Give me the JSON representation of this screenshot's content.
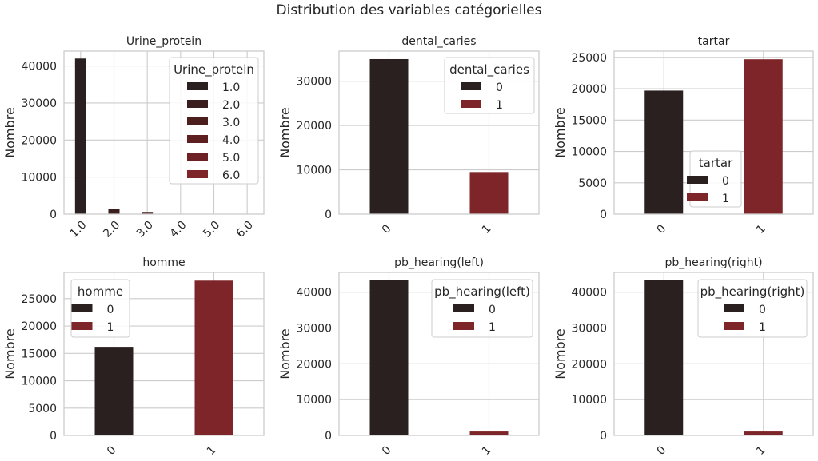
{
  "suptitle": "Distribution des variables catégorielles",
  "colors": {
    "palette": [
      "#2b2020",
      "#3a1d1d",
      "#4c1f1f",
      "#5e1f21",
      "#6e2125",
      "#7d2528"
    ],
    "two": [
      "#2b2020",
      "#7d2528"
    ],
    "grid": "#cccccc",
    "spine": "#cccccc"
  },
  "chart_data": [
    {
      "type": "bar",
      "title": "Urine_protein",
      "ylabel": "Nombre",
      "categories": [
        "1.0",
        "2.0",
        "3.0",
        "4.0",
        "5.0",
        "6.0"
      ],
      "values": [
        42000,
        1500,
        600,
        100,
        50,
        10
      ],
      "ylim": [
        0,
        44000
      ],
      "yticks": [
        0,
        10000,
        20000,
        30000,
        40000
      ],
      "legend": {
        "title": "Urine_protein",
        "labels": [
          "1.0",
          "2.0",
          "3.0",
          "4.0",
          "5.0",
          "6.0"
        ],
        "position": "upper right"
      }
    },
    {
      "type": "bar",
      "title": "dental_caries",
      "ylabel": "Nombre",
      "categories": [
        "0",
        "1"
      ],
      "values": [
        35000,
        9500
      ],
      "ylim": [
        0,
        36800
      ],
      "yticks": [
        0,
        10000,
        20000,
        30000
      ],
      "legend": {
        "title": "dental_caries",
        "labels": [
          "0",
          "1"
        ],
        "position": "upper right"
      }
    },
    {
      "type": "bar",
      "title": "tartar",
      "ylabel": "Nombre",
      "categories": [
        "0",
        "1"
      ],
      "values": [
        19700,
        24700
      ],
      "ylim": [
        0,
        26000
      ],
      "yticks": [
        0,
        5000,
        10000,
        15000,
        20000,
        25000
      ],
      "legend": {
        "title": "tartar",
        "labels": [
          "0",
          "1"
        ],
        "position": "lower center"
      }
    },
    {
      "type": "bar",
      "title": "homme",
      "ylabel": "Nombre",
      "categories": [
        "0",
        "1"
      ],
      "values": [
        16200,
        28300
      ],
      "ylim": [
        0,
        29800
      ],
      "yticks": [
        0,
        5000,
        10000,
        15000,
        20000,
        25000
      ],
      "legend": {
        "title": "homme",
        "labels": [
          "0",
          "1"
        ],
        "position": "upper left"
      }
    },
    {
      "type": "bar",
      "title": "pb_hearing(left)",
      "ylabel": "Nombre",
      "categories": [
        "0",
        "1"
      ],
      "values": [
        43300,
        1100
      ],
      "ylim": [
        0,
        45500
      ],
      "yticks": [
        0,
        10000,
        20000,
        30000,
        40000
      ],
      "legend": {
        "title": "pb_hearing(left)",
        "labels": [
          "0",
          "1"
        ],
        "position": "upper right"
      }
    },
    {
      "type": "bar",
      "title": "pb_hearing(right)",
      "ylabel": "Nombre",
      "categories": [
        "0",
        "1"
      ],
      "values": [
        43300,
        1100
      ],
      "ylim": [
        0,
        45500
      ],
      "yticks": [
        0,
        10000,
        20000,
        30000,
        40000
      ],
      "legend": {
        "title": "pb_hearing(right)",
        "labels": [
          "0",
          "1"
        ],
        "position": "upper right"
      }
    }
  ]
}
